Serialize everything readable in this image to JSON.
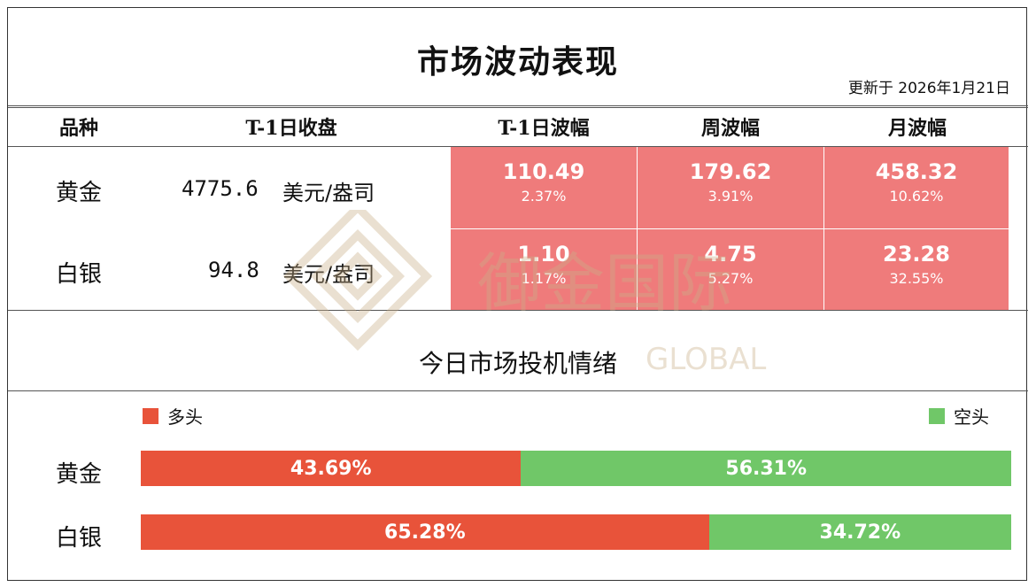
{
  "title": "市场波动表现",
  "updated": "更新于  2026年1月21日",
  "table": {
    "headers": [
      "品种",
      "T-1日收盘",
      "T-1日波幅",
      "周波幅",
      "月波幅"
    ],
    "rows": [
      {
        "name": "黄金",
        "close": "4775.6",
        "unit": "美元/盎司",
        "t1": {
          "value": "110.49",
          "pct": "2.37%"
        },
        "week": {
          "value": "179.62",
          "pct": "3.91%"
        },
        "month": {
          "value": "458.32",
          "pct": "10.62%"
        }
      },
      {
        "name": "白银",
        "close": "94.8",
        "unit": "美元/盎司",
        "t1": {
          "value": "1.10",
          "pct": "1.17%"
        },
        "week": {
          "value": "4.75",
          "pct": "5.27%"
        },
        "month": {
          "value": "23.28",
          "pct": "32.55%"
        }
      }
    ]
  },
  "sentiment": {
    "title": "今日市场投机情绪",
    "legend_long": "多头",
    "legend_short": "空头",
    "colors": {
      "long": "#e8533a",
      "short": "#70c768",
      "cell": "#ef7b7b"
    },
    "rows": [
      {
        "name": "黄金",
        "long": 43.69,
        "short": 56.31,
        "long_label": "43.69%",
        "short_label": "56.31%"
      },
      {
        "name": "白银",
        "long": 65.28,
        "short": 34.72,
        "long_label": "65.28%",
        "short_label": "34.72%"
      }
    ]
  },
  "watermark": {
    "brand": "御金国际",
    "brand_en": "GLOBAL"
  }
}
